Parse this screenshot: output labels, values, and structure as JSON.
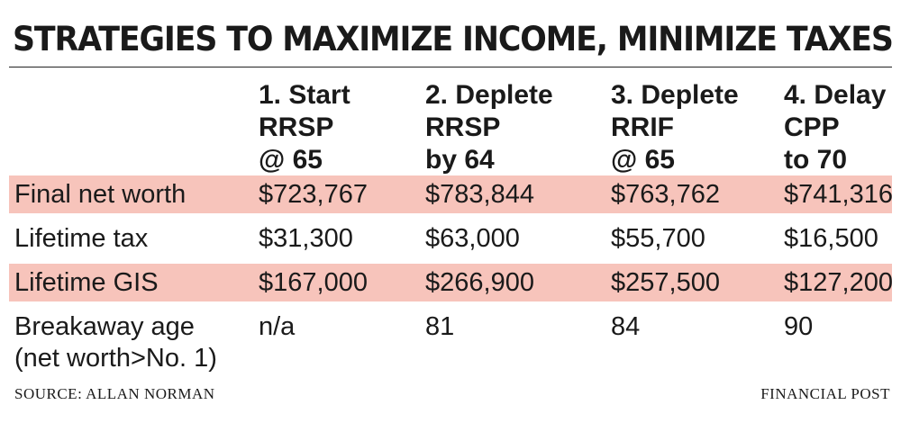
{
  "title": "STRATEGIES TO MAXIMIZE INCOME, MINIMIZE TAXES",
  "columns": [
    {
      "line1": "1. Start",
      "line2": "RRSP",
      "line3": "@ 65"
    },
    {
      "line1": "2. Deplete",
      "line2": "RRSP",
      "line3": "by 64"
    },
    {
      "line1": "3. Deplete",
      "line2": "RRIF",
      "line3": "@ 65"
    },
    {
      "line1": "4. Delay",
      "line2": "CPP",
      "line3": "to 70"
    }
  ],
  "rows": [
    {
      "label": "Final net worth",
      "values": [
        "$723,767",
        "$783,844",
        "$763,762",
        "$741,316"
      ]
    },
    {
      "label": "Lifetime tax",
      "values": [
        "$31,300",
        "$63,000",
        "$55,700",
        "$16,500"
      ]
    },
    {
      "label": "Lifetime GIS",
      "values": [
        "$167,000",
        "$266,900",
        "$257,500",
        "$127,200"
      ]
    },
    {
      "label_line1": "Breakaway age",
      "label_line2": "(net worth>No. 1)",
      "values": [
        "n/a",
        "81",
        "84",
        "90"
      ]
    }
  ],
  "colors": {
    "highlight_band": "#f7c4bb",
    "text": "#1a1a1a",
    "rule": "#222222"
  },
  "source": "SOURCE: ALLAN  NORMAN",
  "credit": "FINANCIAL POST",
  "chart_data": {
    "type": "table",
    "title": "STRATEGIES TO MAXIMIZE INCOME, MINIMIZE TAXES",
    "columns": [
      "1. Start RRSP @ 65",
      "2. Deplete RRSP by 64",
      "3. Deplete RRIF @ 65",
      "4. Delay CPP to 70"
    ],
    "rows": [
      {
        "label": "Final net worth",
        "values": [
          723767,
          783844,
          763762,
          741316
        ]
      },
      {
        "label": "Lifetime tax",
        "values": [
          31300,
          63000,
          55700,
          16500
        ]
      },
      {
        "label": "Lifetime GIS",
        "values": [
          167000,
          266900,
          257500,
          127200
        ]
      },
      {
        "label": "Breakaway age (net worth>No. 1)",
        "values": [
          "n/a",
          81,
          84,
          90
        ]
      }
    ],
    "highlighted_rows": [
      "Final net worth",
      "Lifetime GIS"
    ],
    "source": "SOURCE: ALLAN  NORMAN"
  }
}
